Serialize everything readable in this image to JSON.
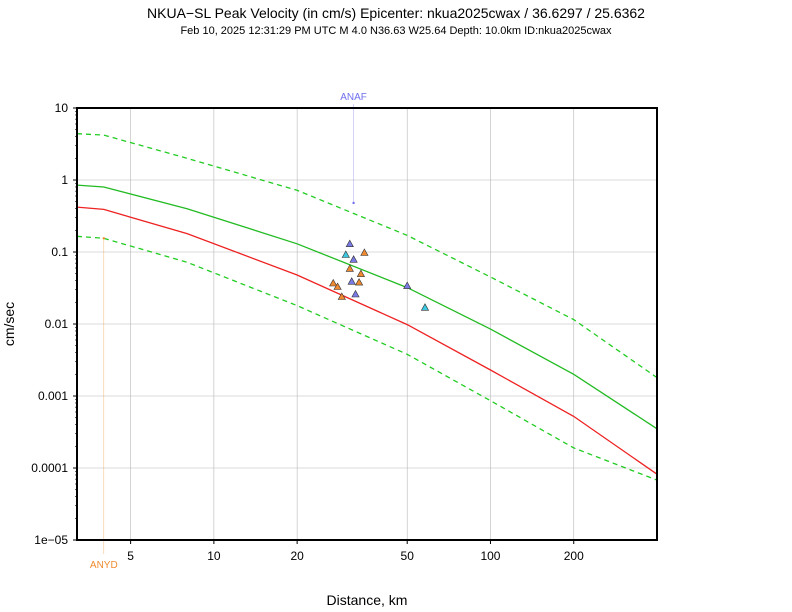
{
  "title": "NKUA−SL Peak Velocity (in cm/s) Epicenter: nkua2025cwax / 36.6297 / 25.6362",
  "subtitle": "Feb 10, 2025 12:31:29 PM UTC   M 4.0   N36.63 W25.64   Depth: 10.0km   ID:nkua2025cwax",
  "chart_data": {
    "type": "scatter",
    "xlabel": "Distance, km",
    "ylabel": "cm/sec",
    "x_scale": "log",
    "y_scale": "log",
    "xlim": [
      3.2,
      400
    ],
    "ylim": [
      1e-05,
      10
    ],
    "grid": true,
    "x_ticks": [
      {
        "value": 5,
        "label": "5"
      },
      {
        "value": 10,
        "label": "10"
      },
      {
        "value": 20,
        "label": "20"
      },
      {
        "value": 50,
        "label": "50"
      },
      {
        "value": 100,
        "label": "100"
      },
      {
        "value": 200,
        "label": "200"
      }
    ],
    "y_ticks": [
      {
        "value": 10,
        "label": "10"
      },
      {
        "value": 1,
        "label": "1"
      },
      {
        "value": 0.1,
        "label": "0.1"
      },
      {
        "value": 0.01,
        "label": "0.01"
      },
      {
        "value": 0.001,
        "label": "0.001"
      },
      {
        "value": 0.0001,
        "label": "0.0001"
      },
      {
        "value": 1e-05,
        "label": "1e−05"
      }
    ],
    "curves": [
      {
        "style": "green-dashed",
        "color": "#22cc22",
        "dash": true,
        "points": [
          [
            3.2,
            4.4
          ],
          [
            4,
            4.2
          ],
          [
            8,
            2.0
          ],
          [
            20,
            0.72
          ],
          [
            50,
            0.17
          ],
          [
            100,
            0.045
          ],
          [
            200,
            0.0115
          ],
          [
            400,
            0.0018
          ]
        ]
      },
      {
        "style": "green-solid",
        "color": "#22bb22",
        "dash": false,
        "points": [
          [
            3.2,
            0.85
          ],
          [
            4,
            0.8
          ],
          [
            8,
            0.4
          ],
          [
            20,
            0.13
          ],
          [
            50,
            0.032
          ],
          [
            100,
            0.0085
          ],
          [
            200,
            0.002
          ],
          [
            400,
            0.00035
          ]
        ]
      },
      {
        "style": "red-solid",
        "color": "#ee2222",
        "dash": false,
        "points": [
          [
            3.2,
            0.42
          ],
          [
            4,
            0.39
          ],
          [
            8,
            0.18
          ],
          [
            20,
            0.048
          ],
          [
            50,
            0.0098
          ],
          [
            100,
            0.0023
          ],
          [
            200,
            0.00052
          ],
          [
            400,
            8.2e-05
          ]
        ]
      },
      {
        "style": "green-dashed",
        "color": "#22cc22",
        "dash": true,
        "points": [
          [
            3.2,
            0.165
          ],
          [
            4,
            0.155
          ],
          [
            8,
            0.072
          ],
          [
            20,
            0.018
          ],
          [
            50,
            0.0038
          ],
          [
            100,
            0.00086
          ],
          [
            200,
            0.00019
          ],
          [
            400,
            6.8e-05
          ]
        ]
      }
    ],
    "stations": [
      {
        "x": 31,
        "y": 0.13,
        "color": "#7a7ae6"
      },
      {
        "x": 30,
        "y": 0.092,
        "color": "#3cc8e0"
      },
      {
        "x": 32,
        "y": 0.079,
        "color": "#7a7ae6"
      },
      {
        "x": 35,
        "y": 0.098,
        "color": "#f08a30"
      },
      {
        "x": 31,
        "y": 0.059,
        "color": "#f08a30"
      },
      {
        "x": 34,
        "y": 0.05,
        "color": "#f08a30"
      },
      {
        "x": 27,
        "y": 0.037,
        "color": "#f08a30"
      },
      {
        "x": 28,
        "y": 0.033,
        "color": "#f08a30"
      },
      {
        "x": 31.5,
        "y": 0.039,
        "color": "#7a7ae6"
      },
      {
        "x": 33.5,
        "y": 0.038,
        "color": "#f08a30"
      },
      {
        "x": 29,
        "y": 0.024,
        "color": "#f08a30"
      },
      {
        "x": 32.5,
        "y": 0.026,
        "color": "#7a7ae6"
      },
      {
        "x": 50,
        "y": 0.034,
        "color": "#7a7ae6"
      },
      {
        "x": 58,
        "y": 0.017,
        "color": "#3cc8e0"
      }
    ],
    "annotations": [
      {
        "text": "ANAF",
        "x": 32,
        "y": 0.48,
        "position": "top",
        "color": "#7070ee"
      },
      {
        "text": "ANYD",
        "x": 4,
        "y": 0.155,
        "position": "bottom",
        "color": "#f08a30"
      }
    ]
  }
}
